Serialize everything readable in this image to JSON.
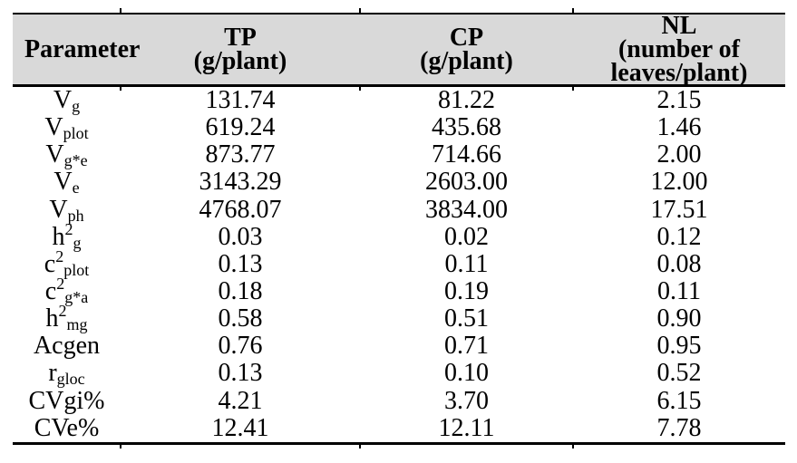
{
  "colors": {
    "header_bg": "#d9d9d9",
    "border": "#000000",
    "text": "#000000"
  },
  "table": {
    "columns": [
      {
        "id": "parameter",
        "label_lines": [
          "Parameter"
        ]
      },
      {
        "id": "tp",
        "label_lines": [
          "TP",
          "(g/plant)"
        ]
      },
      {
        "id": "cp",
        "label_lines": [
          "CP",
          "(g/plant)"
        ]
      },
      {
        "id": "nl",
        "label_lines": [
          "NL",
          "(number of",
          "leaves/plant)"
        ]
      }
    ],
    "rows": [
      {
        "param": [
          [
            "V",
            ""
          ],
          [
            "g",
            "sub"
          ]
        ],
        "values": [
          "131.74",
          "81.22",
          "2.15"
        ]
      },
      {
        "param": [
          [
            "V",
            ""
          ],
          [
            "plot",
            "sub"
          ]
        ],
        "values": [
          "619.24",
          "435.68",
          "1.46"
        ]
      },
      {
        "param": [
          [
            "V",
            ""
          ],
          [
            "g*e",
            "sub"
          ]
        ],
        "values": [
          "873.77",
          "714.66",
          "2.00"
        ]
      },
      {
        "param": [
          [
            "V",
            ""
          ],
          [
            "e",
            "sub"
          ]
        ],
        "values": [
          "3143.29",
          "2603.00",
          "12.00"
        ]
      },
      {
        "param": [
          [
            "V",
            ""
          ],
          [
            "ph",
            "sub"
          ]
        ],
        "values": [
          "4768.07",
          "3834.00",
          "17.51"
        ]
      },
      {
        "param": [
          [
            "h",
            ""
          ],
          [
            "2",
            "sup"
          ],
          [
            "g",
            "sub"
          ]
        ],
        "values": [
          "0.03",
          "0.02",
          "0.12"
        ]
      },
      {
        "param": [
          [
            "c",
            ""
          ],
          [
            "2",
            "sup"
          ],
          [
            "plot",
            "sub"
          ]
        ],
        "values": [
          "0.13",
          "0.11",
          "0.08"
        ]
      },
      {
        "param": [
          [
            "c",
            ""
          ],
          [
            "2",
            "sup"
          ],
          [
            "g*a",
            "sub"
          ]
        ],
        "values": [
          "0.18",
          "0.19",
          "0.11"
        ]
      },
      {
        "param": [
          [
            "h",
            ""
          ],
          [
            "2",
            "sup"
          ],
          [
            "mg",
            "sub"
          ]
        ],
        "values": [
          "0.58",
          "0.51",
          "0.90"
        ]
      },
      {
        "param": [
          [
            "Acgen",
            ""
          ]
        ],
        "values": [
          "0.76",
          "0.71",
          "0.95"
        ]
      },
      {
        "param": [
          [
            "r",
            ""
          ],
          [
            "gloc",
            "sub"
          ]
        ],
        "values": [
          "0.13",
          "0.10",
          "0.52"
        ]
      },
      {
        "param": [
          [
            "CVgi%",
            ""
          ]
        ],
        "values": [
          "4.21",
          "3.70",
          "6.15"
        ]
      },
      {
        "param": [
          [
            "CVe%",
            ""
          ]
        ],
        "values": [
          "12.41",
          "12.11",
          "7.78"
        ]
      }
    ]
  }
}
